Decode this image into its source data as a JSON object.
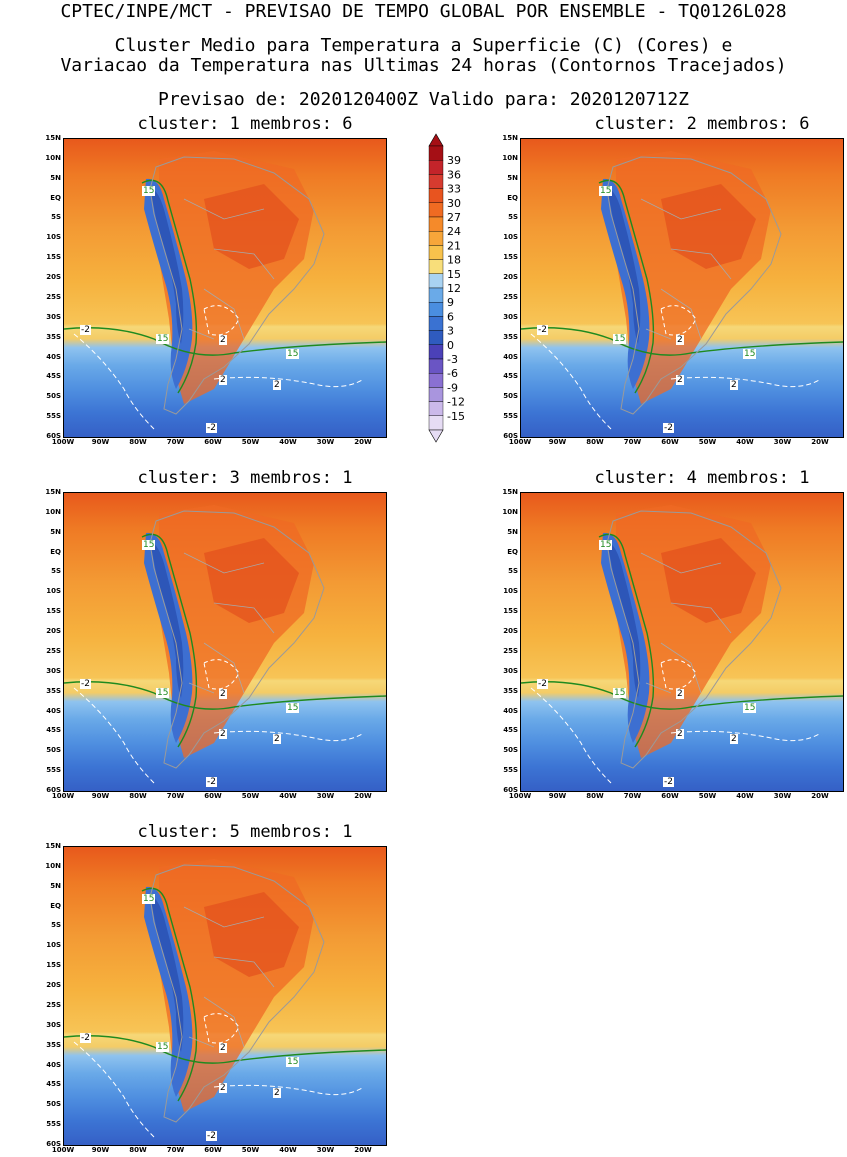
{
  "header": {
    "line1": "CPTEC/INPE/MCT - PREVISAO DE TEMPO GLOBAL POR ENSEMBLE - TQ0126L028",
    "line2": "Cluster Medio para Temperatura a Superficie (C) (Cores) e",
    "line3": "Variacao da Temperatura nas Ultimas 24 horas (Contornos Tracejados)",
    "line4": "Previsao de: 2020120400Z   Valido para: 2020120712Z"
  },
  "panels": [
    {
      "title": "cluster: 1  membros: 6"
    },
    {
      "title": "cluster: 2  membros: 6"
    },
    {
      "title": "cluster: 3  membros: 1"
    },
    {
      "title": "cluster: 4  membros: 1"
    },
    {
      "title": "cluster: 5  membros: 1"
    }
  ],
  "axes": {
    "lat_ticks": [
      "15N",
      "10N",
      "5N",
      "EQ",
      "5S",
      "10S",
      "15S",
      "20S",
      "25S",
      "30S",
      "35S",
      "40S",
      "45S",
      "50S",
      "55S",
      "60S"
    ],
    "lon_ticks": [
      "100W",
      "90W",
      "80W",
      "70W",
      "60W",
      "50W",
      "40W",
      "30W",
      "20W"
    ]
  },
  "colorbar": {
    "labels": [
      "39",
      "36",
      "33",
      "30",
      "27",
      "24",
      "21",
      "18",
      "15",
      "12",
      "9",
      "6",
      "3",
      "0",
      "-3",
      "-6",
      "-9",
      "-12",
      "-15"
    ],
    "colors": [
      "#a50f15",
      "#c3242a",
      "#d63b2f",
      "#e8541f",
      "#f06b22",
      "#f58a2a",
      "#f7a63a",
      "#f8c24c",
      "#f8de7a",
      "#a9d3f2",
      "#6aaae8",
      "#4a8ee0",
      "#3a72d2",
      "#2f5bbf",
      "#4b41b8",
      "#6a55c4",
      "#8a70d2",
      "#a995de",
      "#cbb9ea",
      "#e6dcf4"
    ]
  },
  "contour_labels": {
    "warm_line": "15",
    "change_pos": "2",
    "change_neg": "-2"
  }
}
